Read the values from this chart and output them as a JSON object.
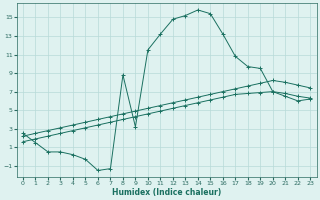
{
  "xlabel": "Humidex (Indice chaleur)",
  "bg_color": "#dff2f0",
  "grid_color": "#b8dbd8",
  "line_color": "#1a7060",
  "xlim": [
    -0.5,
    23.5
  ],
  "ylim": [
    -2.2,
    16.5
  ],
  "xticks": [
    0,
    1,
    2,
    3,
    4,
    5,
    6,
    7,
    8,
    9,
    10,
    11,
    12,
    13,
    14,
    15,
    16,
    17,
    18,
    19,
    20,
    21,
    22,
    23
  ],
  "yticks": [
    -1,
    1,
    3,
    5,
    7,
    9,
    11,
    13,
    15
  ],
  "curve1_x": [
    0,
    1,
    2,
    3,
    4,
    5,
    6,
    7,
    8,
    9,
    10,
    11,
    12,
    13,
    14,
    15,
    16,
    17,
    18,
    19,
    20,
    21,
    22,
    23
  ],
  "curve1_y": [
    2.5,
    1.5,
    0.5,
    0.5,
    0.2,
    -0.3,
    -1.5,
    -1.3,
    8.8,
    3.2,
    11.5,
    13.2,
    14.8,
    15.2,
    15.8,
    15.4,
    13.2,
    10.8,
    9.7,
    9.5,
    7.0,
    6.5,
    6.0,
    6.2
  ],
  "line1_x": [
    0,
    1,
    2,
    3,
    4,
    5,
    6,
    7,
    8,
    9,
    10,
    11,
    12,
    13,
    14,
    15,
    16,
    17,
    18,
    19,
    20,
    21,
    22,
    23
  ],
  "line1_y": [
    1.6,
    1.9,
    2.2,
    2.5,
    2.8,
    3.1,
    3.4,
    3.7,
    4.0,
    4.3,
    4.6,
    4.9,
    5.2,
    5.5,
    5.8,
    6.1,
    6.4,
    6.7,
    6.8,
    6.9,
    7.0,
    6.8,
    6.5,
    6.3
  ],
  "line2_x": [
    0,
    1,
    2,
    3,
    4,
    5,
    6,
    7,
    8,
    9,
    10,
    11,
    12,
    13,
    14,
    15,
    16,
    17,
    18,
    19,
    20,
    21,
    22,
    23
  ],
  "line2_y": [
    2.2,
    2.5,
    2.8,
    3.1,
    3.4,
    3.7,
    4.0,
    4.3,
    4.6,
    4.9,
    5.2,
    5.5,
    5.8,
    6.1,
    6.4,
    6.7,
    7.0,
    7.3,
    7.6,
    7.9,
    8.2,
    8.0,
    7.7,
    7.4
  ]
}
